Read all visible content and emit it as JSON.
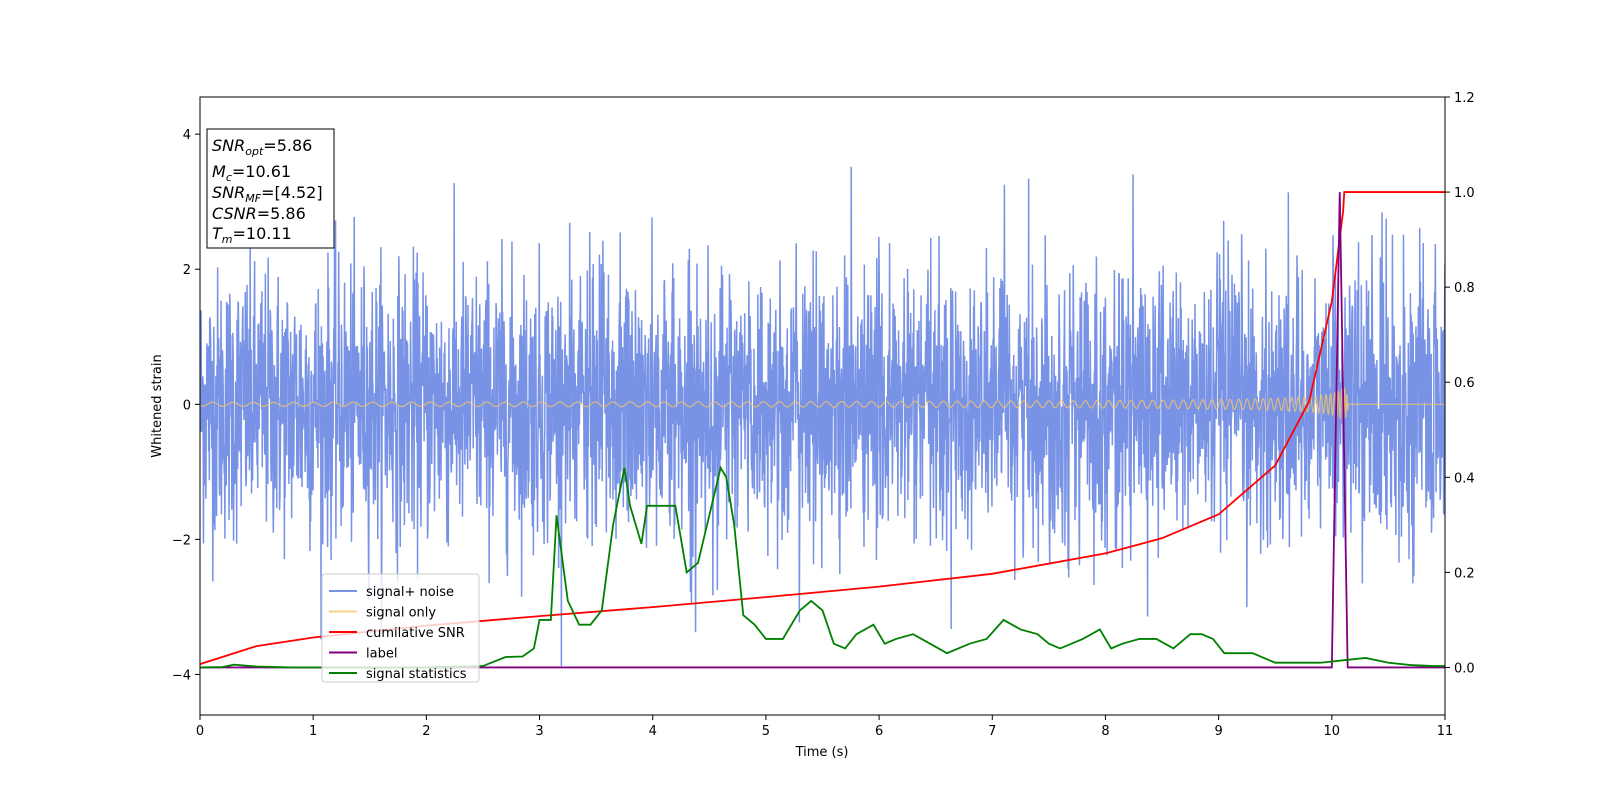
{
  "chart_data": {
    "type": "line",
    "xlabel": "Time (s)",
    "ylabel_left": "Whitened strain",
    "xlim": [
      0,
      11
    ],
    "ylim_left": [
      -4.6,
      4.55
    ],
    "ylim_right": [
      -0.1,
      1.2
    ],
    "x_ticks": [
      "0",
      "1",
      "2",
      "3",
      "4",
      "5",
      "6",
      "7",
      "8",
      "9",
      "10",
      "11"
    ],
    "y_left_ticks": [
      "−4",
      "−2",
      "0",
      "2",
      "4"
    ],
    "y_right_ticks": [
      "0.0",
      "0.2",
      "0.4",
      "0.6",
      "0.8",
      "1.0",
      "1.2"
    ],
    "grid": false,
    "legend_position": "lower-left",
    "annotation": {
      "lines": [
        {
          "sym": "SNR",
          "sub": "opt",
          "value": "=5.86"
        },
        {
          "sym": "M",
          "sub": "c",
          "value": "=10.61"
        },
        {
          "sym": "SNR",
          "sub": "MF",
          "value": "=[4.52]"
        },
        {
          "sym": "CSNR",
          "sub": "",
          "value": "=5.86"
        },
        {
          "sym": "T",
          "sub": "m",
          "value": "=10.11"
        }
      ]
    },
    "series": [
      {
        "name": "signal+ noise",
        "color": "#7893e6",
        "axis": "left",
        "kind": "noise",
        "sigma": 1.0,
        "range": [
          -4.0,
          4.15
        ]
      },
      {
        "name": "signal only",
        "color": "#f5c46b",
        "axis": "left",
        "kind": "chirp",
        "merger_time": 10.11,
        "peak_amplitude": 0.85
      },
      {
        "name": "cumilative SNR",
        "color": "#ff0000",
        "axis": "right",
        "x": [
          0,
          0.5,
          1,
          2,
          3,
          4,
          5,
          6,
          7,
          8,
          8.5,
          9,
          9.5,
          9.8,
          10.0,
          10.1,
          10.11,
          10.15,
          11
        ],
        "y": [
          0.007,
          0.045,
          0.063,
          0.088,
          0.108,
          0.127,
          0.148,
          0.17,
          0.197,
          0.24,
          0.272,
          0.322,
          0.425,
          0.56,
          0.77,
          0.96,
          1.0,
          1.0,
          1.0
        ]
      },
      {
        "name": "label",
        "color": "#800080",
        "axis": "right",
        "x": [
          0,
          10.0,
          10.07,
          10.14,
          11
        ],
        "y": [
          0,
          0,
          1.0,
          0,
          0
        ]
      },
      {
        "name": "signal statistics",
        "color": "#008000",
        "axis": "right",
        "x": [
          0,
          0.2,
          0.3,
          0.5,
          0.8,
          1.0,
          1.5,
          2.0,
          2.5,
          2.7,
          2.85,
          2.95,
          3.0,
          3.1,
          3.15,
          3.25,
          3.35,
          3.45,
          3.55,
          3.65,
          3.75,
          3.8,
          3.9,
          3.95,
          4.0,
          4.2,
          4.3,
          4.4,
          4.5,
          4.6,
          4.65,
          4.72,
          4.8,
          4.9,
          5.0,
          5.15,
          5.3,
          5.4,
          5.5,
          5.6,
          5.7,
          5.8,
          5.95,
          6.05,
          6.15,
          6.3,
          6.45,
          6.6,
          6.8,
          6.95,
          7.1,
          7.25,
          7.4,
          7.5,
          7.6,
          7.8,
          7.95,
          8.05,
          8.15,
          8.3,
          8.45,
          8.6,
          8.75,
          8.85,
          8.95,
          9.05,
          9.15,
          9.3,
          9.5,
          9.7,
          9.9,
          10.1,
          10.3,
          10.5,
          10.7,
          10.9,
          11
        ],
        "y": [
          0,
          0.001,
          0.006,
          0.002,
          0.0,
          0.0,
          0.0,
          0.0,
          0.003,
          0.022,
          0.023,
          0.04,
          0.1,
          0.1,
          0.32,
          0.14,
          0.09,
          0.09,
          0.12,
          0.3,
          0.42,
          0.34,
          0.26,
          0.34,
          0.34,
          0.34,
          0.2,
          0.22,
          0.32,
          0.42,
          0.4,
          0.3,
          0.11,
          0.09,
          0.06,
          0.06,
          0.12,
          0.14,
          0.12,
          0.05,
          0.04,
          0.07,
          0.09,
          0.05,
          0.06,
          0.07,
          0.05,
          0.03,
          0.05,
          0.06,
          0.1,
          0.08,
          0.07,
          0.05,
          0.04,
          0.06,
          0.08,
          0.04,
          0.05,
          0.06,
          0.06,
          0.04,
          0.07,
          0.07,
          0.06,
          0.03,
          0.03,
          0.03,
          0.01,
          0.01,
          0.01,
          0.015,
          0.02,
          0.01,
          0.005,
          0.003,
          0.003
        ]
      }
    ]
  }
}
